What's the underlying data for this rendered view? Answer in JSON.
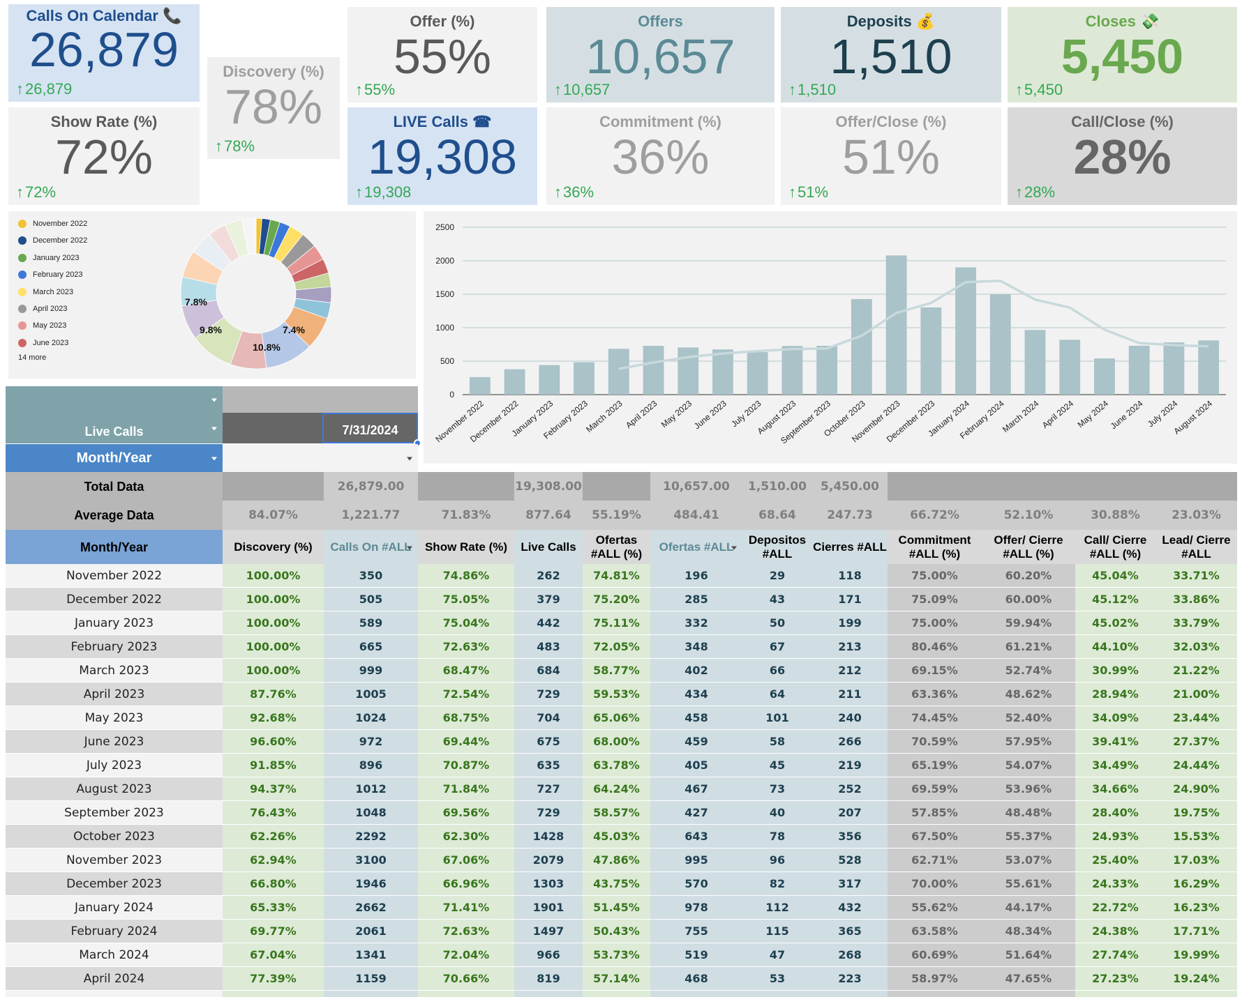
{
  "scorecards": {
    "calls_on_calendar": {
      "title": "Calls On Calendar",
      "value": "26,879",
      "delta": "26,879",
      "icon": "telephone-icon",
      "bg": "#d6e3f3",
      "title_color": "#1f4e8c",
      "value_color": "#1f4e8c"
    },
    "show_rate": {
      "title": "Show Rate (%)",
      "value": "72%",
      "delta": "72%",
      "bg": "#f2f2f2",
      "title_color": "#595959",
      "value_color": "#595959"
    },
    "discovery": {
      "title": "Discovery (%)",
      "value": "78%",
      "delta": "78%",
      "bg": "#efefef",
      "title_color": "#9e9e9e",
      "value_color": "#9e9e9e"
    },
    "offer": {
      "title": "Offer (%)",
      "value": "55%",
      "delta": "55%",
      "bg": "#f2f2f2",
      "title_color": "#595959",
      "value_color": "#595959"
    },
    "live_calls": {
      "title": "LIVE Calls",
      "value": "19,308",
      "delta": "19,308",
      "icon": "alarm-telephone-icon",
      "bg": "#d6e3f3",
      "title_color": "#1f4e8c",
      "value_color": "#1f4e8c"
    },
    "offers": {
      "title": "Offers",
      "value": "10,657",
      "delta": "10,657",
      "bg": "#d5dfe3",
      "title_color": "#5b8a96",
      "value_color": "#5b8a96"
    },
    "commitment": {
      "title": "Commitment (%)",
      "value": "36%",
      "delta": "36%",
      "bg": "#f2f2f2",
      "title_color": "#9e9e9e",
      "value_color": "#9e9e9e"
    },
    "deposits": {
      "title": "Deposits",
      "value": "1,510",
      "delta": "1,510",
      "icon": "money-bag-icon",
      "bg": "#d5dfe3",
      "title_color": "#1d3f4f",
      "value_color": "#1d3f4f"
    },
    "offer_close": {
      "title": "Offer/Close (%)",
      "value": "51%",
      "delta": "51%",
      "bg": "#f2f2f2",
      "title_color": "#9e9e9e",
      "value_color": "#9e9e9e"
    },
    "closes": {
      "title": "Closes",
      "value": "5,450",
      "delta": "5,450",
      "icon": "money-wings-icon",
      "bg": "#dde9d6",
      "title_color": "#6aa84f",
      "value_color": "#6aa84f"
    },
    "call_close": {
      "title": "Call/Close (%)",
      "value": "28%",
      "delta": "28%",
      "bg": "#d9d9d9",
      "title_color": "#666666",
      "value_color": "#666666"
    }
  },
  "pie": {
    "legend": [
      "November 2022",
      "December 2022",
      "January 2023",
      "February 2023",
      "March 2023",
      "April 2023",
      "May 2023",
      "June 2023"
    ],
    "legend_colors": [
      "#f1c232",
      "#1f4e8c",
      "#6aa84f",
      "#3c78d8",
      "#ffe066",
      "#999999",
      "#e69595",
      "#cc6666"
    ],
    "more": "14 more",
    "labels": [
      "7.8%",
      "9.8%",
      "10.8%",
      "7.4%"
    ]
  },
  "chart_data": {
    "type": "bar",
    "categories": [
      "November 2022",
      "December 2022",
      "January 2023",
      "February 2023",
      "March 2023",
      "April 2023",
      "May 2023",
      "June 2023",
      "July 2023",
      "August 2023",
      "September 2023",
      "October 2023",
      "November 2023",
      "December 2023",
      "January 2024",
      "February 2024",
      "March 2024",
      "April 2024",
      "May 2024",
      "June 2024",
      "July 2024",
      "August 2024"
    ],
    "values": [
      262,
      379,
      442,
      483,
      684,
      729,
      704,
      675,
      635,
      727,
      729,
      1428,
      2079,
      1303,
      1901,
      1497,
      966,
      819,
      540,
      730,
      780,
      810
    ],
    "trend_line": [
      null,
      null,
      null,
      null,
      385,
      480,
      560,
      615,
      650,
      680,
      690,
      880,
      1220,
      1370,
      1680,
      1700,
      1420,
      1300,
      970,
      770,
      740,
      720
    ],
    "ylim": [
      0,
      2500
    ],
    "yticks": [
      "0",
      "500",
      "1000",
      "1500",
      "2000",
      "2500"
    ],
    "grid": true,
    "bar_color": "#a9c3c8",
    "line_color": "#c8d9dc"
  },
  "filters": {
    "live_calls": "Live Calls",
    "date": "7/31/2024",
    "month_year": "Month/Year"
  },
  "summary": {
    "total_label": "Total Data",
    "average_label": "Average Data",
    "total": [
      "",
      "26,879.00",
      "",
      "19,308.00",
      "",
      "10,657.00",
      "1,510.00",
      "5,450.00",
      "",
      "",
      "",
      ""
    ],
    "average": [
      "84.07%",
      "1,221.77",
      "71.83%",
      "877.64",
      "55.19%",
      "484.41",
      "68.64",
      "247.73",
      "66.72%",
      "52.10%",
      "30.88%",
      "23.03%"
    ]
  },
  "table": {
    "month_header": "Month/Year",
    "headers": [
      "Discovery (%)",
      "Calls On #ALL",
      "Show Rate (%)",
      "Live Calls",
      "Ofertas #ALL (%)",
      "Ofertas #ALL",
      "Depositos #ALL",
      "Cierres #ALL",
      "Commitment #ALL (%)",
      "Offer/ Cierre #ALL (%)",
      "Call/ Cierre #ALL (%)",
      "Lead/ Cierre #ALL"
    ],
    "rows": [
      {
        "month": "November 2022",
        "cells": [
          "100.00%",
          "350",
          "74.86%",
          "262",
          "74.81%",
          "196",
          "29",
          "118",
          "75.00%",
          "60.20%",
          "45.04%",
          "33.71%"
        ]
      },
      {
        "month": "December 2022",
        "cells": [
          "100.00%",
          "505",
          "75.05%",
          "379",
          "75.20%",
          "285",
          "43",
          "171",
          "75.09%",
          "60.00%",
          "45.12%",
          "33.86%"
        ]
      },
      {
        "month": "January 2023",
        "cells": [
          "100.00%",
          "589",
          "75.04%",
          "442",
          "75.11%",
          "332",
          "50",
          "199",
          "75.00%",
          "59.94%",
          "45.02%",
          "33.79%"
        ]
      },
      {
        "month": "February 2023",
        "cells": [
          "100.00%",
          "665",
          "72.63%",
          "483",
          "72.05%",
          "348",
          "67",
          "213",
          "80.46%",
          "61.21%",
          "44.10%",
          "32.03%"
        ]
      },
      {
        "month": "March 2023",
        "cells": [
          "100.00%",
          "999",
          "68.47%",
          "684",
          "58.77%",
          "402",
          "66",
          "212",
          "69.15%",
          "52.74%",
          "30.99%",
          "21.22%"
        ]
      },
      {
        "month": "April 2023",
        "cells": [
          "87.76%",
          "1005",
          "72.54%",
          "729",
          "59.53%",
          "434",
          "64",
          "211",
          "63.36%",
          "48.62%",
          "28.94%",
          "21.00%"
        ]
      },
      {
        "month": "May 2023",
        "cells": [
          "92.68%",
          "1024",
          "68.75%",
          "704",
          "65.06%",
          "458",
          "101",
          "240",
          "74.45%",
          "52.40%",
          "34.09%",
          "23.44%"
        ]
      },
      {
        "month": "June 2023",
        "cells": [
          "96.60%",
          "972",
          "69.44%",
          "675",
          "68.00%",
          "459",
          "58",
          "266",
          "70.59%",
          "57.95%",
          "39.41%",
          "27.37%"
        ]
      },
      {
        "month": "July 2023",
        "cells": [
          "91.85%",
          "896",
          "70.87%",
          "635",
          "63.78%",
          "405",
          "45",
          "219",
          "65.19%",
          "54.07%",
          "34.49%",
          "24.44%"
        ]
      },
      {
        "month": "August 2023",
        "cells": [
          "94.37%",
          "1012",
          "71.84%",
          "727",
          "64.24%",
          "467",
          "73",
          "252",
          "69.59%",
          "53.96%",
          "34.66%",
          "24.90%"
        ]
      },
      {
        "month": "September 2023",
        "cells": [
          "76.43%",
          "1048",
          "69.56%",
          "729",
          "58.57%",
          "427",
          "40",
          "207",
          "57.85%",
          "48.48%",
          "28.40%",
          "19.75%"
        ]
      },
      {
        "month": "October 2023",
        "cells": [
          "62.26%",
          "2292",
          "62.30%",
          "1428",
          "45.03%",
          "643",
          "78",
          "356",
          "67.50%",
          "55.37%",
          "24.93%",
          "15.53%"
        ]
      },
      {
        "month": "November 2023",
        "cells": [
          "62.94%",
          "3100",
          "67.06%",
          "2079",
          "47.86%",
          "995",
          "96",
          "528",
          "62.71%",
          "53.07%",
          "25.40%",
          "17.03%"
        ]
      },
      {
        "month": "December 2023",
        "cells": [
          "66.80%",
          "1946",
          "66.96%",
          "1303",
          "43.75%",
          "570",
          "82",
          "317",
          "70.00%",
          "55.61%",
          "24.33%",
          "16.29%"
        ]
      },
      {
        "month": "January 2024",
        "cells": [
          "65.33%",
          "2662",
          "71.41%",
          "1901",
          "51.45%",
          "978",
          "112",
          "432",
          "55.62%",
          "44.17%",
          "22.72%",
          "16.23%"
        ]
      },
      {
        "month": "February 2024",
        "cells": [
          "69.77%",
          "2061",
          "72.63%",
          "1497",
          "50.43%",
          "755",
          "115",
          "365",
          "63.58%",
          "48.34%",
          "24.38%",
          "17.71%"
        ]
      },
      {
        "month": "March 2024",
        "cells": [
          "67.04%",
          "1341",
          "72.04%",
          "966",
          "53.73%",
          "519",
          "47",
          "268",
          "60.69%",
          "51.64%",
          "27.74%",
          "19.99%"
        ]
      },
      {
        "month": "April 2024",
        "cells": [
          "77.39%",
          "1159",
          "70.66%",
          "819",
          "57.14%",
          "468",
          "53",
          "223",
          "58.97%",
          "47.65%",
          "27.23%",
          "19.24%"
        ]
      }
    ]
  }
}
